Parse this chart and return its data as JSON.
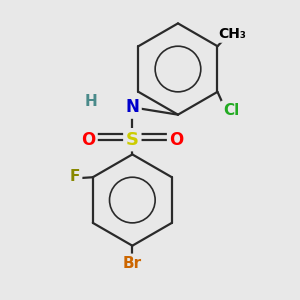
{
  "background_color": "#e8e8e8",
  "figsize": [
    3.0,
    3.0
  ],
  "dpi": 100,
  "bond_color": "#2a2a2a",
  "bond_lw": 1.6,
  "atom_colors": {
    "S": "#cccc00",
    "O": "#ff0000",
    "N": "#0000cc",
    "H": "#4a8a8a",
    "Cl": "#22aa22",
    "F": "#888800",
    "Br": "#cc6600",
    "C": "#000000"
  }
}
